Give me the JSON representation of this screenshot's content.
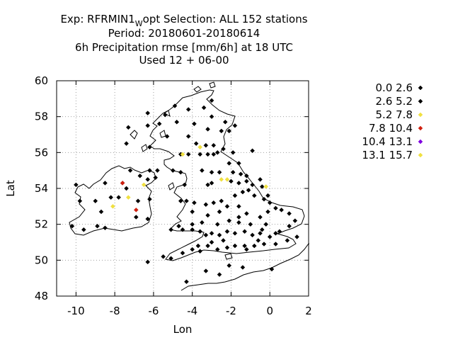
{
  "header": {
    "exp_prefix": "Exp: RFRMIN1",
    "exp_sub": "W",
    "exp_suffix": "opt   Selection: ALL    152 stations",
    "period": "Period: 20180601-20180614",
    "line3": "6h Precipitation rmse [mm/6h] at  18 UTC",
    "line4": "Used  12 + 06-00"
  },
  "chart_data": {
    "type": "scatter",
    "xlabel": "Lon",
    "ylabel": "Lat",
    "xlim": [
      -11,
      2
    ],
    "ylim": [
      48,
      60
    ],
    "xticks": [
      -10,
      -8,
      -6,
      -4,
      -2,
      0,
      2
    ],
    "yticks": [
      48,
      50,
      52,
      54,
      56,
      58,
      60
    ],
    "grid": true,
    "legend_position": "right",
    "legend": [
      {
        "label": "0.0 2.6",
        "color": "#000000"
      },
      {
        "label": "2.6 5.2",
        "color": "#000000"
      },
      {
        "label": "5.2 7.8",
        "color": "#f0e040"
      },
      {
        "label": "7.8 10.4",
        "color": "#d02010"
      },
      {
        "label": "10.4 13.1",
        "color": "#8000e0"
      },
      {
        "label": "13.1 15.7",
        "color": "#f0e040"
      }
    ],
    "series": [
      {
        "name": "0.0 2.6",
        "color": "#000000",
        "points": [
          [
            -6.3,
            58.2
          ],
          [
            -5.4,
            58.1
          ],
          [
            -4.2,
            58.4
          ],
          [
            -3.0,
            58.9
          ],
          [
            -3.4,
            58.5
          ],
          [
            -4.9,
            58.6
          ],
          [
            -5.7,
            57.6
          ],
          [
            -7.3,
            57.4
          ],
          [
            -6.3,
            57.5
          ],
          [
            -4.8,
            57.7
          ],
          [
            -3.9,
            57.6
          ],
          [
            -3.2,
            57.3
          ],
          [
            -2.5,
            57.2
          ],
          [
            -2.1,
            57.2
          ],
          [
            -1.8,
            57.5
          ],
          [
            -7.4,
            56.5
          ],
          [
            -5.3,
            56.9
          ],
          [
            -4.2,
            56.9
          ],
          [
            -3.8,
            56.5
          ],
          [
            -3.3,
            56.4
          ],
          [
            -2.9,
            56.4
          ],
          [
            -2.7,
            56.0
          ],
          [
            -2.4,
            56.2
          ],
          [
            -6.2,
            56.3
          ],
          [
            -4.6,
            55.9
          ],
          [
            -4.2,
            55.9
          ],
          [
            -3.6,
            55.9
          ],
          [
            -3.2,
            55.9
          ],
          [
            -2.9,
            55.9
          ],
          [
            -2.1,
            55.4
          ],
          [
            -1.6,
            55.4
          ],
          [
            -6.2,
            55.0
          ],
          [
            -5.8,
            55.0
          ],
          [
            -5.0,
            55.0
          ],
          [
            -4.6,
            54.9
          ],
          [
            -3.5,
            55.0
          ],
          [
            -3.0,
            54.9
          ],
          [
            -2.6,
            54.9
          ],
          [
            -1.9,
            54.9
          ],
          [
            -1.5,
            54.8
          ],
          [
            -1.2,
            54.7
          ],
          [
            -7.2,
            55.0
          ],
          [
            -6.7,
            54.7
          ],
          [
            -6.3,
            54.5
          ],
          [
            -5.9,
            54.6
          ],
          [
            -7.6,
            54.3
          ],
          [
            -8.5,
            54.3
          ],
          [
            -4.4,
            54.2
          ],
          [
            -3.2,
            54.2
          ],
          [
            -3.0,
            54.3
          ],
          [
            -2.0,
            54.4
          ],
          [
            -1.6,
            54.3
          ],
          [
            -1.2,
            54.4
          ],
          [
            -0.5,
            54.5
          ],
          [
            -0.9,
            54.2
          ],
          [
            -0.4,
            54.1
          ],
          [
            -10.0,
            54.2
          ],
          [
            -9.8,
            53.3
          ],
          [
            -9.0,
            53.3
          ],
          [
            -8.7,
            52.7
          ],
          [
            -8.2,
            53.5
          ],
          [
            -7.4,
            54.0
          ],
          [
            -7.8,
            53.5
          ],
          [
            -6.8,
            53.3
          ],
          [
            -6.2,
            53.4
          ],
          [
            -8.9,
            51.9
          ],
          [
            -8.5,
            51.8
          ],
          [
            -10.2,
            51.9
          ],
          [
            -9.6,
            51.7
          ],
          [
            -6.9,
            52.4
          ],
          [
            -6.3,
            52.3
          ],
          [
            -6.3,
            49.9
          ],
          [
            -5.5,
            50.2
          ],
          [
            -5.1,
            50.1
          ],
          [
            -4.5,
            50.4
          ],
          [
            -4.0,
            50.6
          ],
          [
            -3.6,
            50.5
          ],
          [
            -3.2,
            50.8
          ],
          [
            -2.7,
            50.6
          ],
          [
            -2.2,
            50.7
          ],
          [
            -1.8,
            50.8
          ],
          [
            -1.3,
            50.8
          ],
          [
            -0.8,
            50.8
          ],
          [
            -0.3,
            50.9
          ],
          [
            0.3,
            50.9
          ],
          [
            0.9,
            51.1
          ],
          [
            1.4,
            51.3
          ],
          [
            0.5,
            51.6
          ],
          [
            1.0,
            51.9
          ],
          [
            1.3,
            52.2
          ],
          [
            1.0,
            52.6
          ],
          [
            0.6,
            52.8
          ],
          [
            0.3,
            52.9
          ],
          [
            0.0,
            53.2
          ],
          [
            -0.1,
            52.7
          ],
          [
            -0.5,
            52.4
          ],
          [
            -0.2,
            52.0
          ],
          [
            -0.4,
            51.7
          ],
          [
            -0.5,
            51.5
          ],
          [
            -0.9,
            51.4
          ],
          [
            -1.3,
            51.6
          ],
          [
            -1.8,
            51.5
          ],
          [
            -2.2,
            51.6
          ],
          [
            -2.6,
            51.4
          ],
          [
            -3.0,
            51.5
          ],
          [
            -3.3,
            51.4
          ],
          [
            -3.6,
            51.6
          ],
          [
            -4.0,
            51.7
          ],
          [
            -4.5,
            51.7
          ],
          [
            -5.1,
            51.7
          ],
          [
            -4.7,
            51.9
          ],
          [
            -4.0,
            52.0
          ],
          [
            -3.5,
            52.1
          ],
          [
            -2.7,
            52.0
          ],
          [
            -2.1,
            52.2
          ],
          [
            -1.6,
            52.4
          ],
          [
            -1.2,
            52.6
          ],
          [
            -1.6,
            53.0
          ],
          [
            -2.2,
            53.0
          ],
          [
            -2.5,
            53.3
          ],
          [
            -2.9,
            53.2
          ],
          [
            -3.3,
            53.1
          ],
          [
            -3.9,
            53.2
          ],
          [
            -4.3,
            53.3
          ],
          [
            -4.6,
            53.3
          ],
          [
            -4.0,
            52.7
          ],
          [
            -3.2,
            52.5
          ],
          [
            -2.6,
            52.7
          ],
          [
            -1.8,
            53.6
          ],
          [
            -1.4,
            53.8
          ],
          [
            -1.1,
            53.9
          ],
          [
            -0.8,
            53.6
          ],
          [
            -0.3,
            53.4
          ],
          [
            -0.1,
            53.6
          ],
          [
            -1.6,
            52.1
          ],
          [
            -1.0,
            52.0
          ],
          [
            -0.6,
            51.1
          ],
          [
            0.0,
            51.3
          ],
          [
            0.3,
            51.5
          ],
          [
            -2.4,
            51.1
          ],
          [
            -3.0,
            51.0
          ],
          [
            -3.7,
            50.8
          ],
          [
            -1.2,
            50.6
          ],
          [
            -3.3,
            49.4
          ],
          [
            -2.6,
            49.2
          ],
          [
            -2.1,
            49.7
          ],
          [
            -1.4,
            49.6
          ],
          [
            0.1,
            49.5
          ],
          [
            -4.3,
            48.8
          ],
          [
            -1.9,
            56.0
          ],
          [
            -0.9,
            56.1
          ],
          [
            -3.0,
            58.0
          ],
          [
            -2.3,
            57.7
          ]
        ]
      },
      {
        "name": "5.2 7.8",
        "color": "#f0e040",
        "points": [
          [
            -3.6,
            56.3
          ],
          [
            -4.5,
            55.9
          ],
          [
            -2.5,
            54.5
          ],
          [
            -2.2,
            54.5
          ],
          [
            -0.2,
            54.1
          ],
          [
            -6.5,
            54.2
          ],
          [
            -7.3,
            53.5
          ],
          [
            -8.1,
            53.0
          ]
        ]
      },
      {
        "name": "7.8 10.4",
        "color": "#d02010",
        "points": [
          [
            -7.6,
            54.3
          ],
          [
            -6.9,
            52.8
          ]
        ]
      }
    ]
  }
}
